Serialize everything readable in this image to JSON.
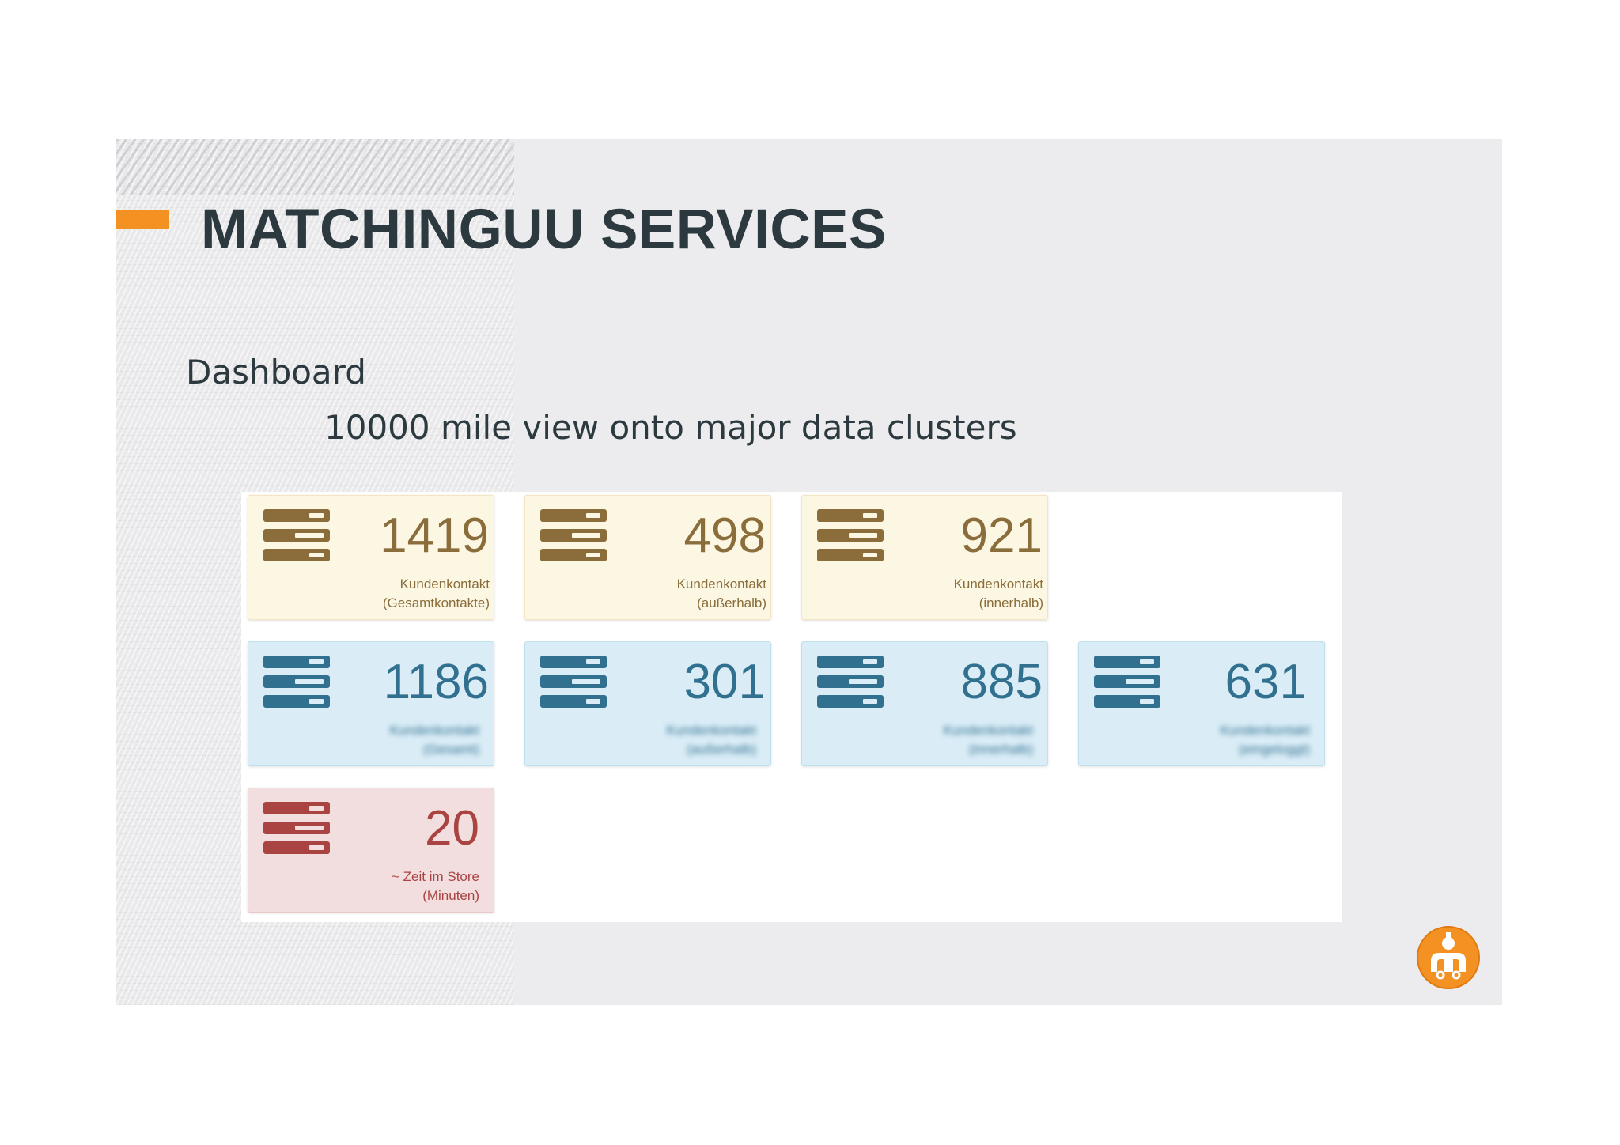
{
  "header": {
    "title": "MATCHINGUU SERVICES",
    "subtitle": "Dashboard",
    "caption": "10000 mile view onto major data clusters"
  },
  "colors": {
    "accent": "#f39122",
    "warning_text": "#8a6d3b",
    "info_text": "#31708f",
    "danger_text": "#a94442"
  },
  "cards": [
    {
      "value": "1419",
      "label_line1": "Kundenkontakt",
      "label_line2": "(Gesamtkontakte)",
      "variant": "warning",
      "icon": "server-stack-icon"
    },
    {
      "value": "498",
      "label_line1": "Kundenkontakt",
      "label_line2": "(außerhalb)",
      "variant": "warning",
      "icon": "server-stack-icon"
    },
    {
      "value": "921",
      "label_line1": "Kundenkontakt",
      "label_line2": "(innerhalb)",
      "variant": "warning",
      "icon": "server-stack-icon"
    },
    {
      "value": "1186",
      "label_line1": "Kundenkontakt",
      "label_line2": "(Gesamt)",
      "variant": "info",
      "icon": "server-stack-icon"
    },
    {
      "value": "301",
      "label_line1": "Kundenkontakt",
      "label_line2": "(außerhalb)",
      "variant": "info",
      "icon": "server-stack-icon"
    },
    {
      "value": "885",
      "label_line1": "Kundenkontakt",
      "label_line2": "(innerhalb)",
      "variant": "info",
      "icon": "server-stack-icon"
    },
    {
      "value": "631",
      "label_line1": "Kundenkontakt",
      "label_line2": "(eingeloggt)",
      "variant": "info",
      "icon": "server-stack-icon"
    },
    {
      "value": "20",
      "label_line1": "~ Zeit im Store",
      "label_line2": "(Minuten)",
      "variant": "danger",
      "icon": "server-stack-icon"
    }
  ],
  "logo": {
    "icon": "matchinguu-logo-icon"
  }
}
